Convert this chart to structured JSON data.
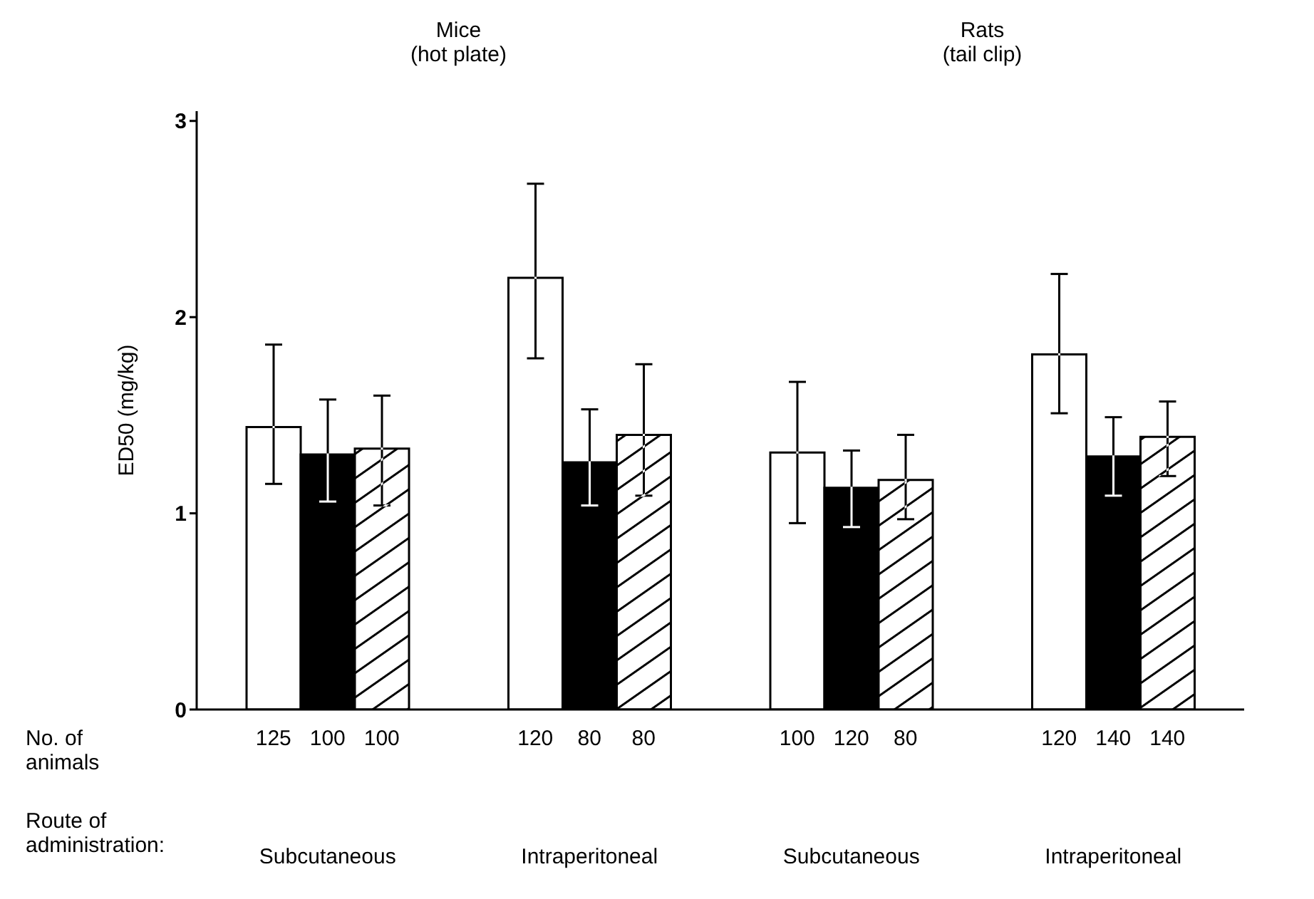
{
  "chart_data": {
    "type": "bar",
    "ylabel": "ED50 (mg/kg)",
    "categories": [
      "Subcutaneous",
      "Intraperitoneal",
      "Subcutaneous",
      "Intraperitoneal"
    ],
    "series": [
      {
        "color": "#ffffff",
        "values": [
          1.44,
          2.2,
          1.31,
          1.81
        ],
        "errors": [
          [
            1.15,
            1.86
          ],
          [
            1.79,
            2.68
          ],
          [
            0.95,
            1.67
          ],
          [
            1.51,
            2.22
          ]
        ]
      },
      {
        "color": "#000000",
        "values": [
          1.3,
          1.26,
          1.13,
          1.29
        ],
        "errors": [
          [
            1.06,
            1.58
          ],
          [
            1.04,
            1.53
          ],
          [
            0.93,
            1.32
          ],
          [
            1.09,
            1.49
          ]
        ]
      },
      {
        "color": "#000000",
        "values": [
          1.33,
          1.4,
          1.17,
          1.39
        ],
        "errors": [
          [
            1.04,
            1.6
          ],
          [
            1.09,
            1.76
          ],
          [
            0.97,
            1.4
          ],
          [
            1.19,
            1.57
          ]
        ]
      }
    ],
    "ylim": [
      0,
      3.05
    ],
    "yticks": [
      0,
      1,
      2,
      3
    ],
    "grid": false,
    "legend": false,
    "annotations": [
      "Mice\n(hot plate)",
      "Rats\n(tail clip)",
      "No. of\nanimals",
      "Route of\nadministration:",
      "125",
      "100",
      "100",
      "120",
      "80",
      "80",
      "100",
      "120",
      "80",
      "120",
      "140",
      "140"
    ]
  }
}
